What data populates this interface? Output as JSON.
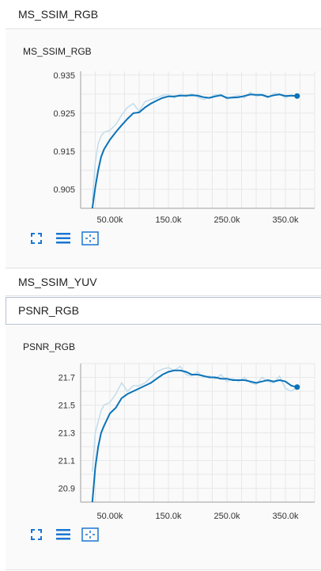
{
  "sections": [
    {
      "label": "MS_SSIM_RGB"
    },
    {
      "label": "MS_SSIM_YUV"
    },
    {
      "label": "PSNR_RGB"
    }
  ],
  "colors": {
    "line": "#0b73b8",
    "raw": "#c3dcec",
    "grid": "#e8e8e8",
    "axis": "#9e9e9e"
  },
  "chart_data": [
    {
      "type": "line",
      "title": "MS_SSIM_RGB",
      "xlabel": "",
      "ylabel": "",
      "xlim": [
        0,
        400000
      ],
      "ylim": [
        0.9,
        0.936
      ],
      "x_ticks": [
        50000,
        150000,
        250000,
        350000
      ],
      "x_tick_labels": [
        "50.00k",
        "150.0k",
        "250.0k",
        "350.0k"
      ],
      "y_ticks": [
        0.905,
        0.915,
        0.925,
        0.935
      ],
      "y_tick_labels": [
        "0.905",
        "0.915",
        "0.925",
        "0.935"
      ],
      "grid": true,
      "series": [
        {
          "name": "smoothed",
          "x": [
            20000,
            25000,
            30000,
            35000,
            40000,
            50000,
            60000,
            70000,
            80000,
            90000,
            100000,
            110000,
            120000,
            130000,
            140000,
            150000,
            160000,
            170000,
            180000,
            190000,
            200000,
            210000,
            220000,
            230000,
            240000,
            250000,
            260000,
            270000,
            280000,
            290000,
            300000,
            310000,
            320000,
            330000,
            340000,
            350000,
            360000,
            370000
          ],
          "y": [
            0.9,
            0.9055,
            0.91,
            0.9135,
            0.9155,
            0.918,
            0.92,
            0.9218,
            0.9235,
            0.925,
            0.9252,
            0.9265,
            0.9275,
            0.9283,
            0.929,
            0.9294,
            0.9294,
            0.9296,
            0.9296,
            0.9297,
            0.9296,
            0.9292,
            0.929,
            0.9294,
            0.9297,
            0.929,
            0.9291,
            0.9292,
            0.9295,
            0.9299,
            0.9298,
            0.9298,
            0.9293,
            0.9297,
            0.9299,
            0.9295,
            0.9296,
            0.9295
          ]
        },
        {
          "name": "raw",
          "x": [
            20000,
            25000,
            30000,
            35000,
            40000,
            50000,
            60000,
            70000,
            80000,
            90000,
            100000,
            110000,
            120000,
            130000,
            140000,
            150000,
            160000,
            170000,
            180000,
            190000,
            200000,
            210000,
            220000,
            230000,
            240000,
            250000,
            260000,
            270000,
            280000,
            290000,
            300000,
            310000,
            320000,
            330000,
            340000,
            350000,
            360000,
            370000
          ],
          "y": [
            0.902,
            0.912,
            0.917,
            0.919,
            0.92,
            0.9205,
            0.922,
            0.9245,
            0.9265,
            0.9275,
            0.9255,
            0.928,
            0.9286,
            0.929,
            0.9297,
            0.9299,
            0.929,
            0.93,
            0.9293,
            0.9301,
            0.9292,
            0.9286,
            0.9291,
            0.9298,
            0.9299,
            0.9287,
            0.9294,
            0.9296,
            0.929,
            0.9305,
            0.9294,
            0.9297,
            0.929,
            0.9302,
            0.9301,
            0.929,
            0.9297,
            0.9295
          ]
        }
      ]
    },
    {
      "type": "line",
      "title": "PSNR_RGB",
      "xlabel": "",
      "ylabel": "",
      "xlim": [
        0,
        400000
      ],
      "ylim": [
        20.8,
        21.8
      ],
      "x_ticks": [
        50000,
        150000,
        250000,
        350000
      ],
      "x_tick_labels": [
        "50.00k",
        "150.0k",
        "250.0k",
        "350.0k"
      ],
      "y_ticks": [
        20.9,
        21.1,
        21.3,
        21.5,
        21.7
      ],
      "y_tick_labels": [
        "20.9",
        "21.1",
        "21.3",
        "21.5",
        "21.7"
      ],
      "grid": true,
      "series": [
        {
          "name": "smoothed",
          "x": [
            20000,
            25000,
            30000,
            35000,
            40000,
            50000,
            60000,
            70000,
            80000,
            90000,
            100000,
            110000,
            120000,
            130000,
            140000,
            150000,
            160000,
            170000,
            180000,
            190000,
            200000,
            210000,
            220000,
            230000,
            240000,
            250000,
            260000,
            270000,
            280000,
            290000,
            300000,
            310000,
            320000,
            330000,
            340000,
            350000,
            360000,
            370000
          ],
          "y": [
            20.8,
            21.05,
            21.2,
            21.3,
            21.35,
            21.44,
            21.48,
            21.55,
            21.58,
            21.6,
            21.62,
            21.64,
            21.66,
            21.69,
            21.72,
            21.74,
            21.75,
            21.75,
            21.74,
            21.72,
            21.72,
            21.71,
            21.7,
            21.7,
            21.69,
            21.69,
            21.68,
            21.68,
            21.68,
            21.67,
            21.66,
            21.67,
            21.68,
            21.67,
            21.68,
            21.67,
            21.64,
            21.63
          ]
        },
        {
          "name": "raw",
          "x": [
            20000,
            25000,
            30000,
            35000,
            40000,
            50000,
            60000,
            70000,
            80000,
            90000,
            100000,
            110000,
            120000,
            130000,
            140000,
            150000,
            160000,
            170000,
            180000,
            190000,
            200000,
            210000,
            220000,
            230000,
            240000,
            250000,
            260000,
            270000,
            280000,
            290000,
            300000,
            310000,
            320000,
            330000,
            340000,
            350000,
            360000,
            370000
          ],
          "y": [
            21.02,
            21.3,
            21.38,
            21.46,
            21.5,
            21.52,
            21.58,
            21.66,
            21.6,
            21.64,
            21.64,
            21.66,
            21.7,
            21.74,
            21.76,
            21.77,
            21.75,
            21.78,
            21.72,
            21.71,
            21.74,
            21.7,
            21.71,
            21.69,
            21.72,
            21.67,
            21.69,
            21.67,
            21.7,
            21.66,
            21.65,
            21.7,
            21.67,
            21.66,
            21.71,
            21.62,
            21.6,
            21.63
          ]
        }
      ]
    }
  ]
}
